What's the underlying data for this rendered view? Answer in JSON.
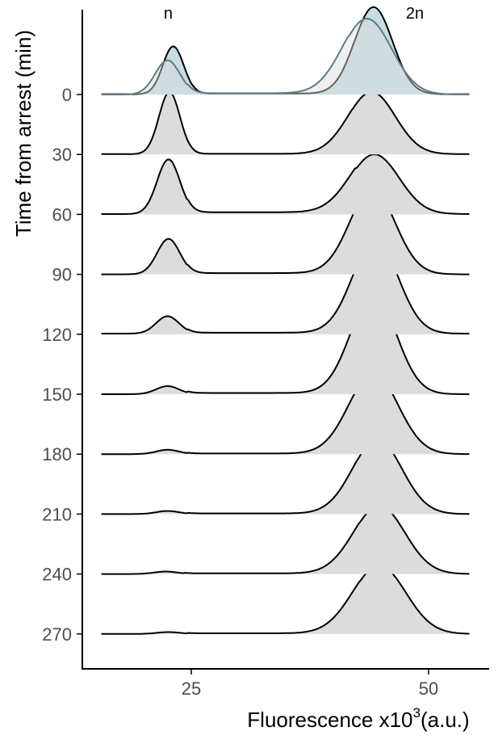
{
  "chart_data": {
    "type": "ridgeline",
    "xlabel": "Fluorescence x10",
    "xlabel_sup": "3",
    "xlabel_unit": "(a.u.)",
    "ylabel": "Time from arrest (min)",
    "xlim": [
      14,
      56
    ],
    "x_ticks": [
      25,
      50
    ],
    "y_categories": [
      "0",
      "30",
      "60",
      "90",
      "120",
      "150",
      "180",
      "210",
      "240",
      "270"
    ],
    "annotations": [
      {
        "text": "n",
        "x": 23,
        "ridge": "0"
      },
      {
        "text": "2n",
        "x": 46,
        "ridge": "0"
      }
    ],
    "colors": {
      "fill": "#dcdcdc",
      "highlight": "#c5dde3",
      "highlight_line": "#5f7a84",
      "line": "#000000"
    },
    "series": [
      {
        "time": "0",
        "base": 0.005,
        "peak1": {
          "mu": 23.1,
          "sigma": 1.1,
          "amp": 0.77
        },
        "peak2": {
          "mu": 44.2,
          "sigma": 2.0,
          "amp": 1.4
        },
        "mid": 0.01
      },
      {
        "time": "30",
        "base": 0.005,
        "peak1": {
          "mu": 22.7,
          "sigma": 1.1,
          "amp": 1.0
        },
        "peak2": {
          "mu": 44.0,
          "sigma": 2.5,
          "amp": 1.0
        },
        "mid": 0.005
      },
      {
        "time": "60",
        "base": 0.005,
        "peak1": {
          "mu": 22.6,
          "sigma": 1.2,
          "amp": 0.88
        },
        "peak2": {
          "mu": 44.3,
          "sigma": 2.6,
          "amp": 0.96
        },
        "mid": 0.03
      },
      {
        "time": "90",
        "base": 0.0,
        "peak1": {
          "mu": 22.6,
          "sigma": 1.2,
          "amp": 0.57
        },
        "peak2": {
          "mu": 44.1,
          "sigma": 2.4,
          "amp": 1.36
        },
        "mid": 0.02
      },
      {
        "time": "120",
        "base": 0.01,
        "peak1": {
          "mu": 22.5,
          "sigma": 1.2,
          "amp": 0.28
        },
        "peak2": {
          "mu": 44.4,
          "sigma": 2.4,
          "amp": 1.5
        },
        "mid": 0.015
      },
      {
        "time": "150",
        "base": 0.0,
        "peak1": {
          "mu": 22.5,
          "sigma": 1.2,
          "amp": 0.13
        },
        "peak2": {
          "mu": 44.2,
          "sigma": 2.4,
          "amp": 1.6
        },
        "mid": 0.02
      },
      {
        "time": "180",
        "base": 0.0,
        "peak1": {
          "mu": 22.5,
          "sigma": 1.2,
          "amp": 0.07
        },
        "peak2": {
          "mu": 44.2,
          "sigma": 2.6,
          "amp": 1.3
        },
        "mid": 0.01
      },
      {
        "time": "210",
        "base": 0.0,
        "peak1": {
          "mu": 22.5,
          "sigma": 1.2,
          "amp": 0.05
        },
        "peak2": {
          "mu": 44.6,
          "sigma": 2.6,
          "amp": 1.2
        },
        "mid": 0.01
      },
      {
        "time": "240",
        "base": 0.0,
        "peak1": {
          "mu": 22.3,
          "sigma": 1.2,
          "amp": 0.04
        },
        "peak2": {
          "mu": 44.8,
          "sigma": 2.7,
          "amp": 1.1
        },
        "mid": 0.01
      },
      {
        "time": "270",
        "base": 0.0,
        "peak1": {
          "mu": 22.6,
          "sigma": 1.2,
          "amp": 0.03
        },
        "peak2": {
          "mu": 44.8,
          "sigma": 2.8,
          "amp": 1.1
        },
        "mid": 0.01
      }
    ],
    "overlay_time0": {
      "peak1": {
        "mu": 22.5,
        "sigma": 1.3,
        "amp": 0.55
      },
      "peak2": {
        "mu": 43.5,
        "sigma": 2.6,
        "amp": 1.22
      },
      "mid": 0.02
    }
  }
}
